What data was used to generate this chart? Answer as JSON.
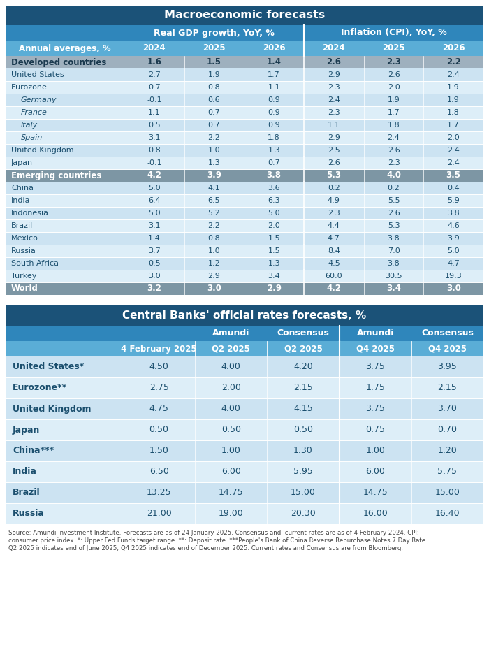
{
  "table1_title": "Macroeconomic forecasts",
  "table1_subheader1": "Real GDP growth, YoY, %",
  "table1_subheader2": "Inflation (CPI), YoY, %",
  "table1_col_header": "Annual averages, %",
  "table1_years": [
    "2024",
    "2025",
    "2026",
    "2024",
    "2025",
    "2026"
  ],
  "table1_rows": [
    {
      "label": "Developed countries",
      "values": [
        "1.6",
        "1.5",
        "1.4",
        "2.6",
        "2.3",
        "2.2"
      ],
      "style": "header_dark"
    },
    {
      "label": "United States",
      "values": [
        "2.7",
        "1.9",
        "1.7",
        "2.9",
        "2.6",
        "2.4"
      ],
      "style": "normal"
    },
    {
      "label": "Eurozone",
      "values": [
        "0.7",
        "0.8",
        "1.1",
        "2.3",
        "2.0",
        "1.9"
      ],
      "style": "normal"
    },
    {
      "label": "Germany",
      "values": [
        "-0.1",
        "0.6",
        "0.9",
        "2.4",
        "1.9",
        "1.9"
      ],
      "style": "italic"
    },
    {
      "label": "France",
      "values": [
        "1.1",
        "0.7",
        "0.9",
        "2.3",
        "1.7",
        "1.8"
      ],
      "style": "italic"
    },
    {
      "label": "Italy",
      "values": [
        "0.5",
        "0.7",
        "0.9",
        "1.1",
        "1.8",
        "1.7"
      ],
      "style": "italic"
    },
    {
      "label": "Spain",
      "values": [
        "3.1",
        "2.2",
        "1.8",
        "2.9",
        "2.4",
        "2.0"
      ],
      "style": "italic"
    },
    {
      "label": "United Kingdom",
      "values": [
        "0.8",
        "1.0",
        "1.3",
        "2.5",
        "2.6",
        "2.4"
      ],
      "style": "normal"
    },
    {
      "label": "Japan",
      "values": [
        "-0.1",
        "1.3",
        "0.7",
        "2.6",
        "2.3",
        "2.4"
      ],
      "style": "normal"
    },
    {
      "label": "Emerging countries",
      "values": [
        "4.2",
        "3.9",
        "3.8",
        "5.3",
        "4.0",
        "3.5"
      ],
      "style": "header_gray"
    },
    {
      "label": "China",
      "values": [
        "5.0",
        "4.1",
        "3.6",
        "0.2",
        "0.2",
        "0.4"
      ],
      "style": "normal"
    },
    {
      "label": "India",
      "values": [
        "6.4",
        "6.5",
        "6.3",
        "4.9",
        "5.5",
        "5.9"
      ],
      "style": "normal"
    },
    {
      "label": "Indonesia",
      "values": [
        "5.0",
        "5.2",
        "5.0",
        "2.3",
        "2.6",
        "3.8"
      ],
      "style": "normal"
    },
    {
      "label": "Brazil",
      "values": [
        "3.1",
        "2.2",
        "2.0",
        "4.4",
        "5.3",
        "4.6"
      ],
      "style": "normal"
    },
    {
      "label": "Mexico",
      "values": [
        "1.4",
        "0.8",
        "1.5",
        "4.7",
        "3.8",
        "3.9"
      ],
      "style": "normal"
    },
    {
      "label": "Russia",
      "values": [
        "3.7",
        "1.0",
        "1.5",
        "8.4",
        "7.0",
        "5.0"
      ],
      "style": "normal"
    },
    {
      "label": "South Africa",
      "values": [
        "0.5",
        "1.2",
        "1.3",
        "4.5",
        "3.8",
        "4.7"
      ],
      "style": "normal"
    },
    {
      "label": "Turkey",
      "values": [
        "3.0",
        "2.9",
        "3.4",
        "60.0",
        "30.5",
        "19.3"
      ],
      "style": "normal"
    },
    {
      "label": "World",
      "values": [
        "3.2",
        "3.0",
        "2.9",
        "4.2",
        "3.4",
        "3.0"
      ],
      "style": "header_gray"
    }
  ],
  "table2_title": "Central Banks' official rates forecasts, %",
  "table2_rows": [
    {
      "label": "United States*",
      "values": [
        "4.50",
        "4.00",
        "4.20",
        "3.75",
        "3.95"
      ]
    },
    {
      "label": "Eurozone**",
      "values": [
        "2.75",
        "2.00",
        "2.15",
        "1.75",
        "2.15"
      ]
    },
    {
      "label": "United Kingdom",
      "values": [
        "4.75",
        "4.00",
        "4.15",
        "3.75",
        "3.70"
      ]
    },
    {
      "label": "Japan",
      "values": [
        "0.50",
        "0.50",
        "0.50",
        "0.75",
        "0.70"
      ]
    },
    {
      "label": "China***",
      "values": [
        "1.50",
        "1.00",
        "1.30",
        "1.00",
        "1.20"
      ]
    },
    {
      "label": "India",
      "values": [
        "6.50",
        "6.00",
        "5.95",
        "6.00",
        "5.75"
      ]
    },
    {
      "label": "Brazil",
      "values": [
        "13.25",
        "14.75",
        "15.00",
        "14.75",
        "15.00"
      ]
    },
    {
      "label": "Russia",
      "values": [
        "21.00",
        "19.00",
        "20.30",
        "16.00",
        "16.40"
      ]
    }
  ],
  "footnote_lines": [
    "Source: Amundi Investment Institute. Forecasts are as of 24 January 2025. Consensus and  current rates are as of 4 February 2024. CPI:",
    "consumer price index. *: Upper Fed Funds target range. **: Deposit rate. ***People's Bank of China Reverse Repurchase Notes 7 Day Rate.",
    "Q2 2025 indicates end of June 2025; Q4 2025 indicates end of December 2025. Current rates and Consensus are from Bloomberg."
  ],
  "colors": {
    "title_bg": "#1b5278",
    "subheader_bg": "#2f86bb",
    "year_row_bg": "#5aadd6",
    "header_dark_bg": "#9eb0be",
    "header_gray_bg": "#7d96a4",
    "row_bg_1": "#cce3f2",
    "row_bg_2": "#ddeef8",
    "world_bg": "#7d96a4",
    "white": "#ffffff",
    "dark_blue_text": "#1b4f6e",
    "header_dark_text": "#1b3a4f",
    "gray_header_text": "#ffffff",
    "footnote_text": "#444444"
  }
}
